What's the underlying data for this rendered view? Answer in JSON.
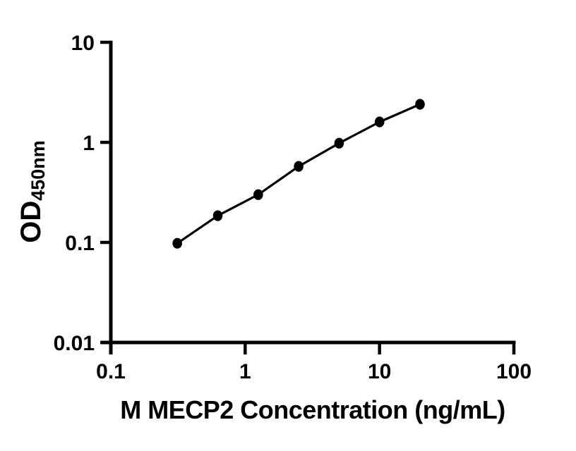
{
  "figure": {
    "background": "#ffffff"
  },
  "chart_data": {
    "type": "scatter",
    "title": "",
    "xlabel": "M MECP2 Concentration (ng/mL)",
    "ylabel": {
      "main": "OD",
      "sub": "450nm"
    },
    "x_scale": "log",
    "y_scale": "log",
    "xlim": [
      0.1,
      100
    ],
    "ylim": [
      0.01,
      10
    ],
    "grid": false,
    "legend": "none",
    "x_ticks": [
      {
        "v": 0.1,
        "label": "0.1"
      },
      {
        "v": 1,
        "label": "1"
      },
      {
        "v": 10,
        "label": "10"
      },
      {
        "v": 100,
        "label": "100"
      }
    ],
    "y_ticks": [
      {
        "v": 0.01,
        "label": "0.01"
      },
      {
        "v": 0.1,
        "label": "0.1"
      },
      {
        "v": 1,
        "label": "1"
      },
      {
        "v": 10,
        "label": "10"
      }
    ],
    "line_through_points": true,
    "points": [
      {
        "x": 0.3125,
        "y": 0.098
      },
      {
        "x": 0.625,
        "y": 0.185
      },
      {
        "x": 1.25,
        "y": 0.3
      },
      {
        "x": 2.5,
        "y": 0.575
      },
      {
        "x": 5,
        "y": 0.98
      },
      {
        "x": 10,
        "y": 1.6
      },
      {
        "x": 20,
        "y": 2.4
      }
    ],
    "colors": {
      "axis": "#000000",
      "tick_label": "#000000",
      "marker": "#000000",
      "line": "#000000",
      "background": "#ffffff"
    }
  }
}
